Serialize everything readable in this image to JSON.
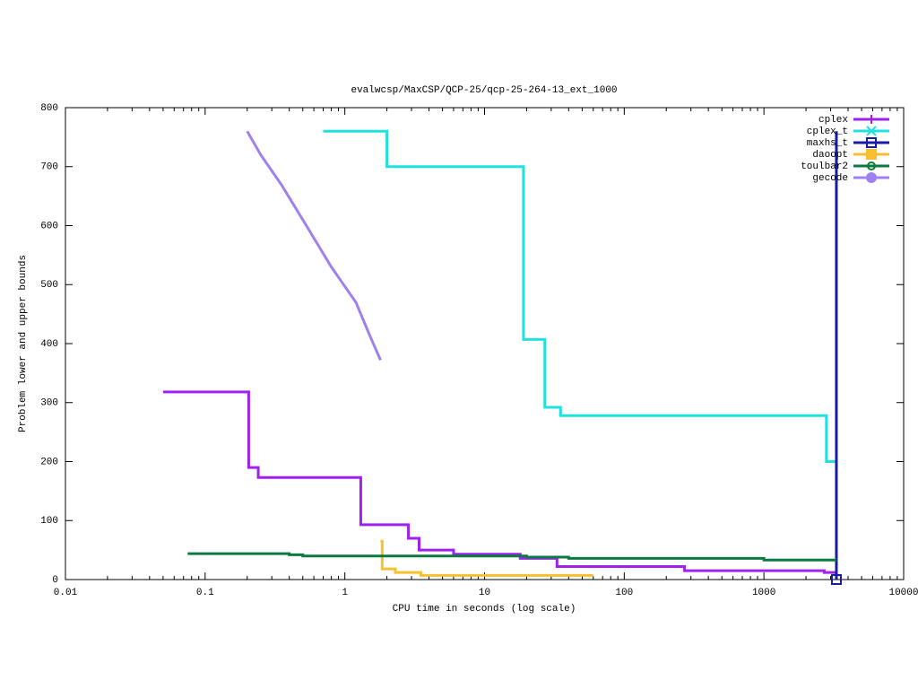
{
  "chart_data": {
    "type": "line",
    "title": "evalwcsp/MaxCSP/QCP-25/qcp-25-264-13_ext_1000",
    "xlabel": "CPU time in seconds (log scale)",
    "ylabel": "Problem lower and upper bounds",
    "xscale": "log",
    "xlim": [
      0.01,
      10000
    ],
    "xticks": [
      0.01,
      0.1,
      1,
      10,
      100,
      1000,
      10000
    ],
    "ylim": [
      0,
      800
    ],
    "yticks": [
      0,
      100,
      200,
      300,
      400,
      500,
      600,
      700,
      800
    ],
    "legend": "top-right",
    "series": [
      {
        "name": "cplex",
        "color": "#a020f0",
        "style": "steps",
        "marker": "plus",
        "x": [
          0.05,
          0.205,
          0.24,
          1.3,
          2.85,
          3.4,
          6,
          18,
          33,
          270,
          2700,
          3300
        ],
        "values": [
          318,
          190,
          173,
          93,
          70,
          50,
          43,
          36,
          22,
          15,
          12,
          8
        ]
      },
      {
        "name": "cplex_t",
        "color": "#20e0e0",
        "style": "steps",
        "marker": "cross",
        "x": [
          0.7,
          2.0,
          19,
          27,
          35,
          2800,
          3300
        ],
        "values": [
          760,
          700,
          407,
          292,
          278,
          200,
          200
        ]
      },
      {
        "name": "maxhs_t",
        "color": "#1a1aa8",
        "style": "steps",
        "marker": "square",
        "x": [
          3300,
          3300
        ],
        "values": [
          760,
          0
        ]
      },
      {
        "name": "daoopt",
        "color": "#f8c030",
        "style": "steps",
        "marker": "filled-square",
        "x": [
          1.8,
          1.85,
          2.3,
          3.5,
          60
        ],
        "values": [
          65,
          18,
          12,
          7,
          7
        ]
      },
      {
        "name": "toulbar2",
        "color": "#0a7a40",
        "style": "steps",
        "marker": "circle",
        "x": [
          0.075,
          0.4,
          0.5,
          20,
          40,
          1000,
          3300
        ],
        "values": [
          44,
          42,
          40,
          38,
          36,
          33,
          33
        ]
      },
      {
        "name": "gecode",
        "color": "#a080f0",
        "style": "lines",
        "marker": "filled-circle",
        "x": [
          0.2,
          0.25,
          0.35,
          0.5,
          0.8,
          1.2,
          1.5,
          1.8
        ],
        "values": [
          760,
          720,
          670,
          610,
          530,
          470,
          415,
          372
        ]
      }
    ]
  }
}
